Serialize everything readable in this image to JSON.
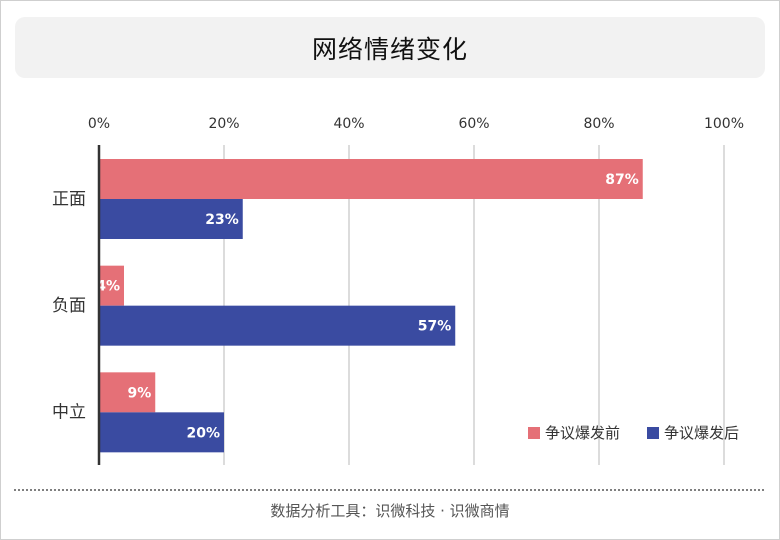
{
  "title": "网络情绪变化",
  "footer": "数据分析工具：识微科技 · 识微商情",
  "colors": {
    "before": "#e57077",
    "after": "#3a4ba1",
    "grid": "#b8b8b8",
    "axis": "#333333"
  },
  "chart_data": {
    "type": "bar",
    "orientation": "horizontal",
    "categories": [
      "正面",
      "负面",
      "中立"
    ],
    "series": [
      {
        "name": "争议爆发前",
        "values": [
          87,
          4,
          9
        ]
      },
      {
        "name": "争议爆发后",
        "values": [
          23,
          57,
          20
        ]
      }
    ],
    "xlim": [
      0,
      100
    ],
    "x_ticks": [
      0,
      20,
      40,
      60,
      80,
      100
    ],
    "tick_format": "percent",
    "grid": true,
    "legend_position": "bottom-right",
    "data_labels": true
  }
}
